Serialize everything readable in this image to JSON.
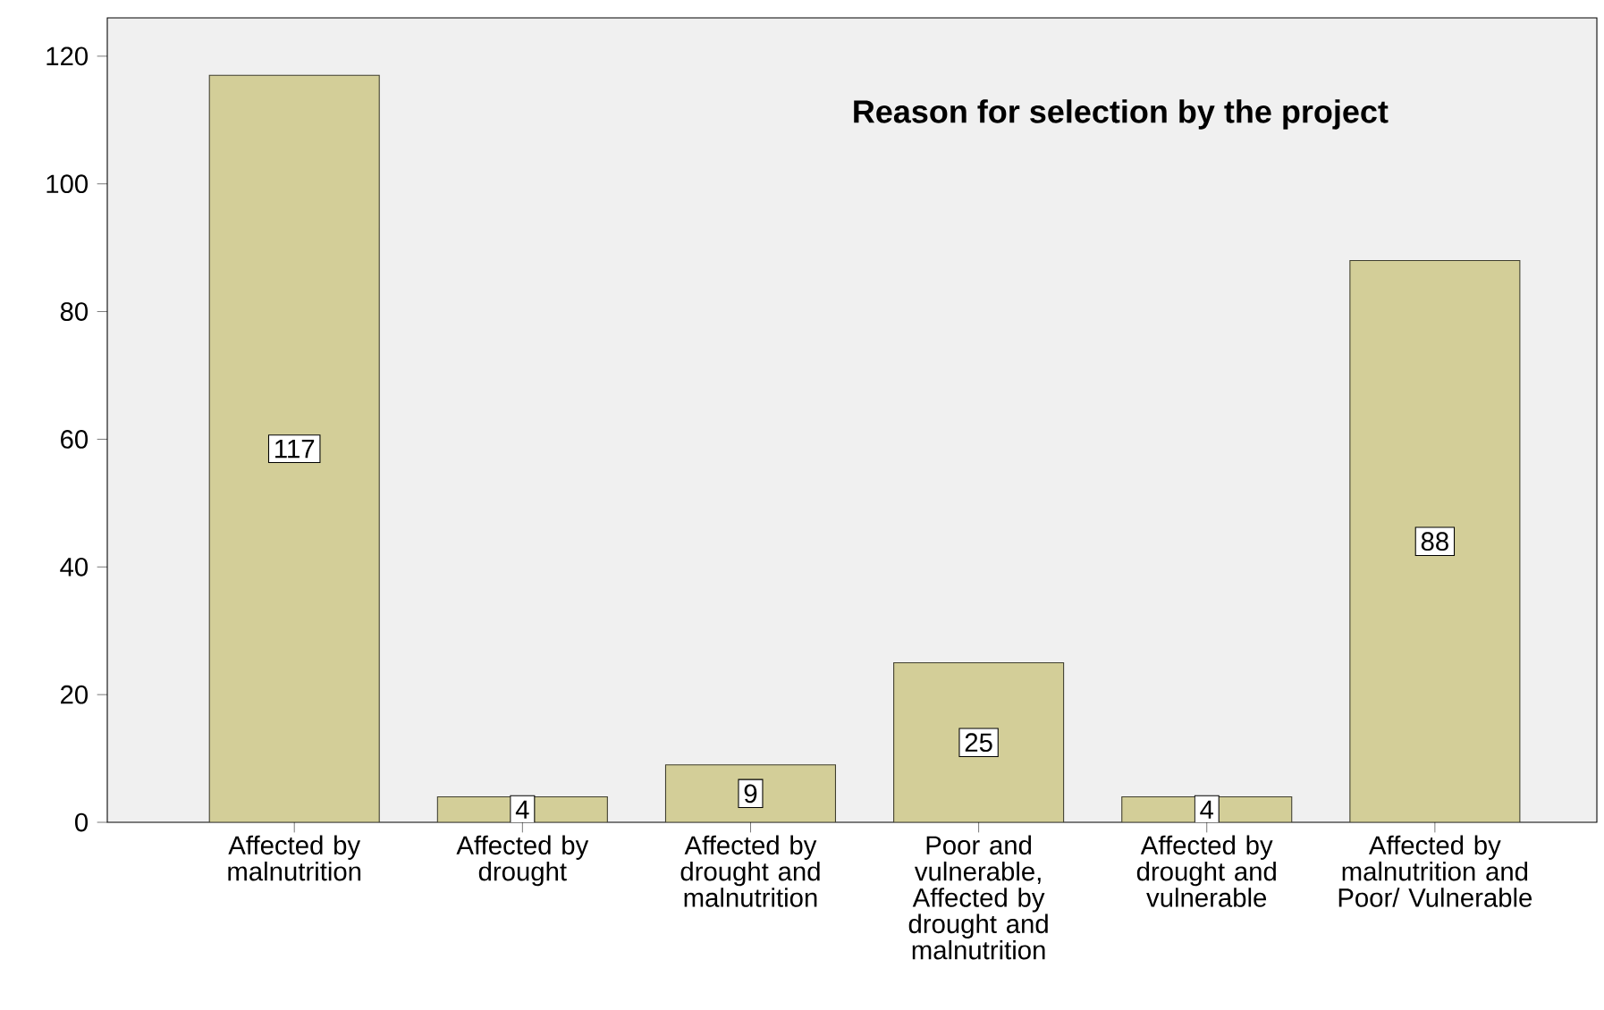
{
  "chart_data": {
    "type": "bar",
    "title": "Reason for selection by the project",
    "categories": [
      "Affected by malnutrition",
      "Affected by drought",
      "Affected by drought and malnutrition",
      "Poor and vulnerable, Affected by drought and malnutrition",
      "Affected by drought and vulnerable",
      "Affected by malnutrition and Poor/ Vulnerable"
    ],
    "values": [
      117,
      4,
      9,
      25,
      4,
      88
    ],
    "color": "#d3ce98",
    "ylim": [
      0,
      126
    ],
    "yticks": [
      0,
      20,
      40,
      60,
      80,
      100,
      120
    ],
    "data_labels": true
  }
}
